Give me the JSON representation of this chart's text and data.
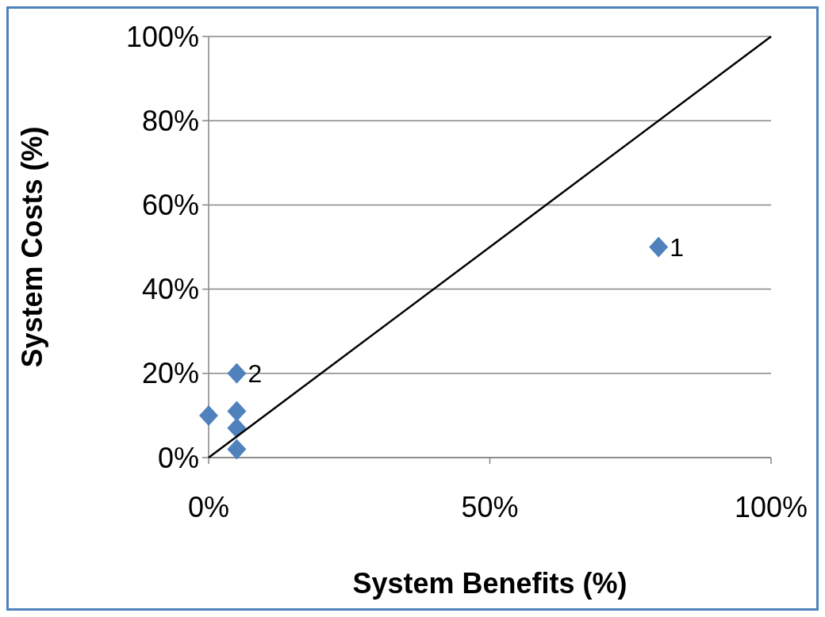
{
  "chart_data": {
    "type": "scatter",
    "xlabel": "System Benefits (%)",
    "ylabel": "System Costs (%)",
    "xlim": [
      0,
      100
    ],
    "ylim": [
      0,
      100
    ],
    "xticks": [
      {
        "value": 0,
        "label": "0%"
      },
      {
        "value": 50,
        "label": "50%"
      },
      {
        "value": 100,
        "label": "100%"
      }
    ],
    "yticks": [
      {
        "value": 0,
        "label": "0%"
      },
      {
        "value": 20,
        "label": "20%"
      },
      {
        "value": 40,
        "label": "40%"
      },
      {
        "value": 60,
        "label": "60%"
      },
      {
        "value": 80,
        "label": "80%"
      },
      {
        "value": 100,
        "label": "100%"
      }
    ],
    "grid": "y",
    "marker": "diamond",
    "series": [
      {
        "color": "#4f81bd",
        "x": [
          80,
          5,
          0,
          5,
          5,
          5
        ],
        "values": [
          50,
          20,
          10,
          11,
          7,
          2
        ]
      },
      {
        "type": "line",
        "marker": "none",
        "color": "#000000",
        "x": [
          0,
          100
        ],
        "values": [
          0,
          100
        ]
      }
    ],
    "annotations": [
      {
        "text": "1",
        "x": 80,
        "y": 50
      },
      {
        "text": "2",
        "x": 5,
        "y": 20
      }
    ]
  }
}
